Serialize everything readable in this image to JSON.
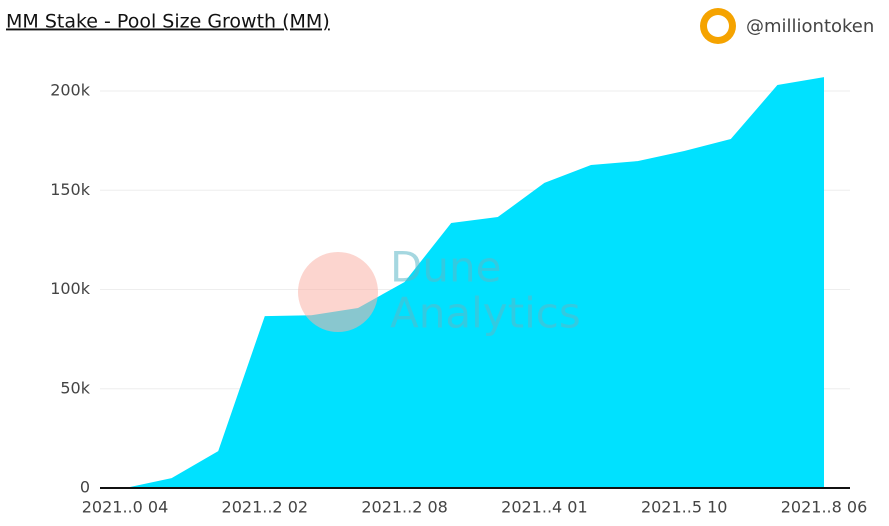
{
  "chart_data": {
    "type": "area",
    "title": "MM Stake - Pool Size Growth (MM)",
    "handle": "@milliontoken",
    "watermark": [
      "Dune",
      "Analytics"
    ],
    "categories": [
      "2021..0 04",
      null,
      null,
      "2021..2 02",
      null,
      null,
      "2021..2 08",
      null,
      null,
      "2021..4 01",
      null,
      null,
      "2021..5 10",
      null,
      null,
      "2021..8 06"
    ],
    "values": [
      0,
      5000,
      18600,
      86600,
      87000,
      90700,
      103800,
      133500,
      136500,
      153700,
      162700,
      164700,
      169800,
      175800,
      203000,
      207000
    ],
    "color": "#00e1ff",
    "ylim": [
      0,
      200000
    ],
    "yticks": [
      0,
      {
        "value": 50000,
        "label": "50k"
      },
      {
        "value": 100000,
        "label": "100k"
      },
      {
        "value": 150000,
        "label": "150k"
      },
      {
        "value": 200000,
        "label": "200k"
      }
    ],
    "grid": true
  }
}
